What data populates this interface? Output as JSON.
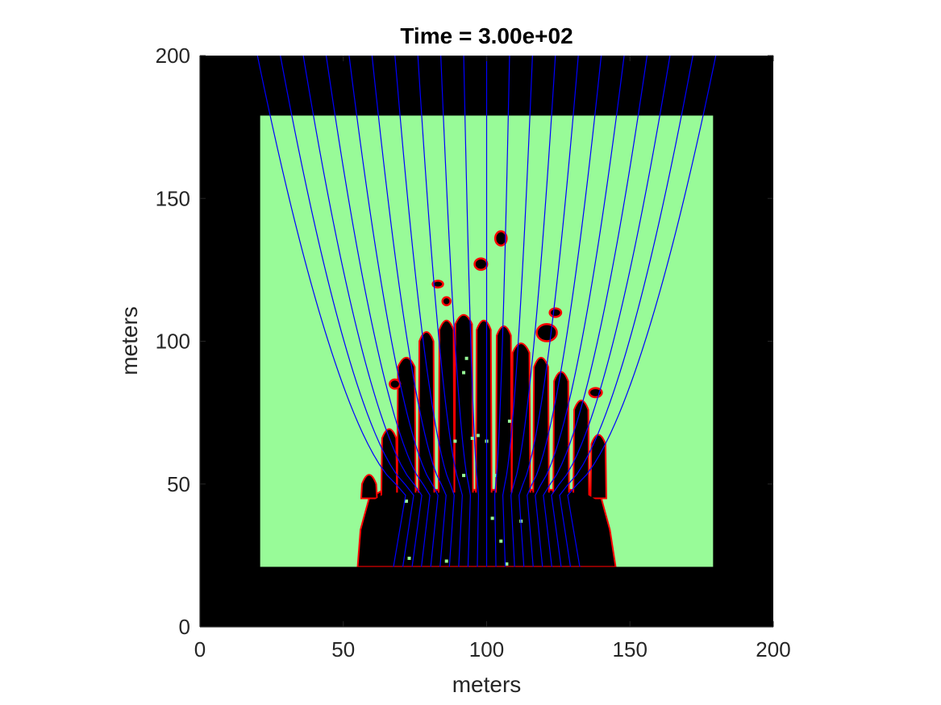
{
  "chart_data": {
    "type": "heatmap",
    "title": "Time = 3.00e+02",
    "xlabel": "meters",
    "ylabel": "meters",
    "xlim": [
      0,
      200
    ],
    "ylim": [
      0,
      200
    ],
    "x_ticks": [
      0,
      50,
      100,
      150,
      200
    ],
    "y_ticks": [
      0,
      50,
      100,
      150,
      200
    ],
    "x_tick_labels": [
      "0",
      "50",
      "100",
      "150",
      "200"
    ],
    "y_tick_labels": [
      "0",
      "50",
      "100",
      "150",
      "200"
    ],
    "domain_box": {
      "x": [
        21,
        179
      ],
      "y": [
        21,
        179
      ]
    },
    "colors": {
      "background": "#000000",
      "fluid": "#98fb98",
      "interface": "#ff0000",
      "streamlines": "#0000ff"
    },
    "grid": false,
    "legend": "none",
    "fingers": [
      {
        "x": 59,
        "w": 5.5,
        "top": 54
      },
      {
        "x": 66,
        "w": 5.5,
        "top": 70
      },
      {
        "x": 72,
        "w": 6.5,
        "top": 95
      },
      {
        "x": 79,
        "w": 5.5,
        "top": 104
      },
      {
        "x": 86,
        "w": 5.5,
        "top": 108
      },
      {
        "x": 92,
        "w": 6.5,
        "top": 110
      },
      {
        "x": 99,
        "w": 5.5,
        "top": 108
      },
      {
        "x": 106,
        "w": 5.5,
        "top": 106
      },
      {
        "x": 112,
        "w": 6.5,
        "top": 100
      },
      {
        "x": 119,
        "w": 5.5,
        "top": 95
      },
      {
        "x": 126,
        "w": 5.5,
        "top": 90
      },
      {
        "x": 133,
        "w": 5.5,
        "top": 80
      },
      {
        "x": 139,
        "w": 5.5,
        "top": 68
      }
    ],
    "blobs": [
      {
        "x": 98,
        "y": 127,
        "rx": 2.2,
        "ry": 2.0
      },
      {
        "x": 105,
        "y": 136,
        "rx": 2.0,
        "ry": 2.5
      },
      {
        "x": 121,
        "y": 103,
        "rx": 3.5,
        "ry": 3.0
      },
      {
        "x": 124,
        "y": 110,
        "rx": 2.0,
        "ry": 1.5
      },
      {
        "x": 83,
        "y": 120,
        "rx": 1.8,
        "ry": 1.2
      },
      {
        "x": 86,
        "y": 114,
        "rx": 1.4,
        "ry": 1.4
      },
      {
        "x": 138,
        "y": 82,
        "rx": 2.2,
        "ry": 1.6
      },
      {
        "x": 68,
        "y": 85,
        "rx": 1.8,
        "ry": 1.6
      }
    ],
    "specks": [
      {
        "x": 95,
        "y": 66
      },
      {
        "x": 97,
        "y": 67
      },
      {
        "x": 100,
        "y": 65
      },
      {
        "x": 89,
        "y": 65
      },
      {
        "x": 108,
        "y": 72
      },
      {
        "x": 92,
        "y": 89
      },
      {
        "x": 93,
        "y": 94
      },
      {
        "x": 72,
        "y": 44
      },
      {
        "x": 92,
        "y": 53
      },
      {
        "x": 103,
        "y": 53
      },
      {
        "x": 102,
        "y": 38
      },
      {
        "x": 112,
        "y": 37
      },
      {
        "x": 73,
        "y": 24
      },
      {
        "x": 86,
        "y": 23
      },
      {
        "x": 107,
        "y": 22
      },
      {
        "x": 105,
        "y": 30
      }
    ]
  }
}
